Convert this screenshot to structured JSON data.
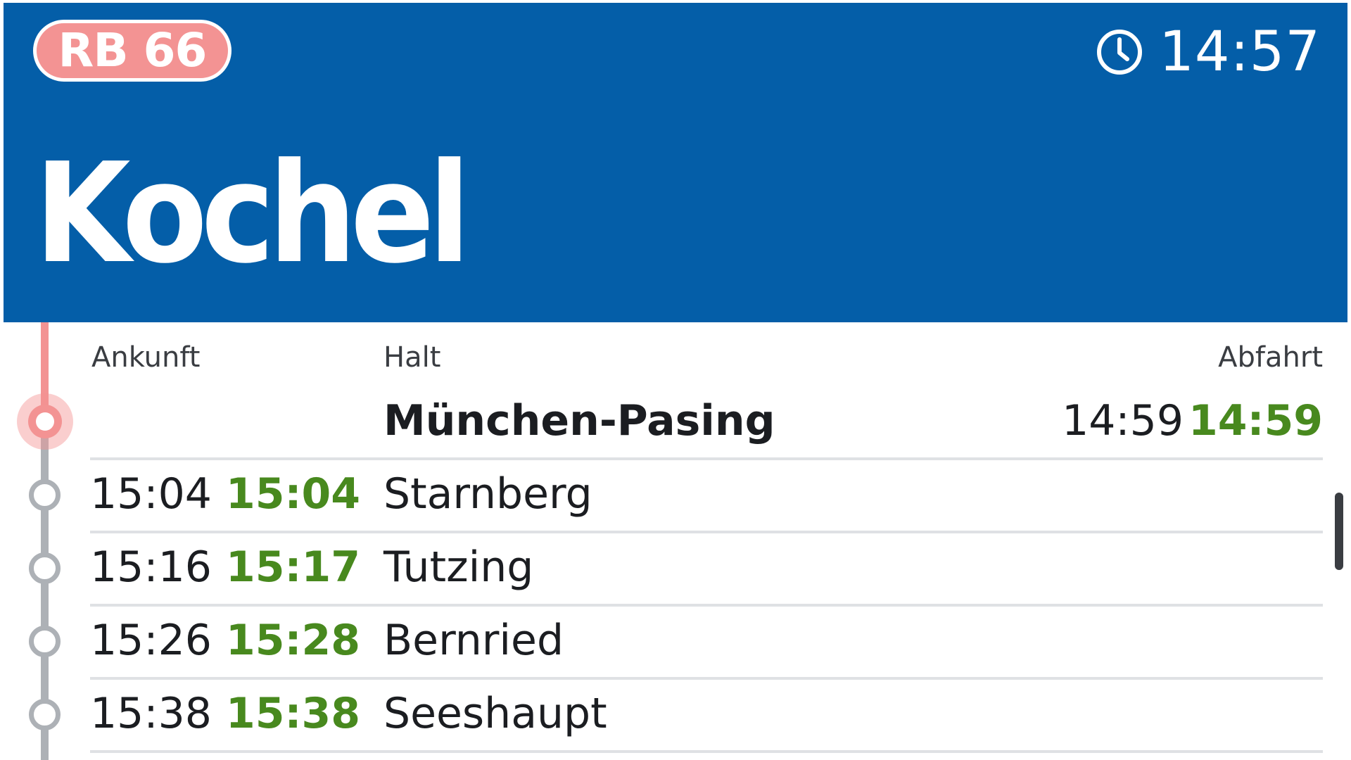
{
  "header": {
    "line": "RB 66",
    "clock_icon": "clock-icon",
    "current_time": "14:57",
    "destination": "Kochel"
  },
  "columns": {
    "arrival": "Ankunft",
    "stop": "Halt",
    "departure": "Abfahrt"
  },
  "stops": [
    {
      "name": "München-Pasing",
      "arrival_planned": "",
      "arrival_actual": "",
      "departure_planned": "14:59",
      "departure_actual": "14:59",
      "current": true
    },
    {
      "name": "Starnberg",
      "arrival_planned": "15:04",
      "arrival_actual": "15:04",
      "departure_planned": "",
      "departure_actual": ""
    },
    {
      "name": "Tutzing",
      "arrival_planned": "15:16",
      "arrival_actual": "15:17",
      "departure_planned": "",
      "departure_actual": ""
    },
    {
      "name": "Bernried",
      "arrival_planned": "15:26",
      "arrival_actual": "15:28",
      "departure_planned": "",
      "departure_actual": ""
    },
    {
      "name": "Seeshaupt",
      "arrival_planned": "15:38",
      "arrival_actual": "15:38",
      "departure_planned": "",
      "departure_actual": ""
    }
  ],
  "colors": {
    "header_bg": "#045ea8",
    "line_badge": "#f39393",
    "on_time": "#48891e",
    "timeline": "#adb1b6"
  }
}
